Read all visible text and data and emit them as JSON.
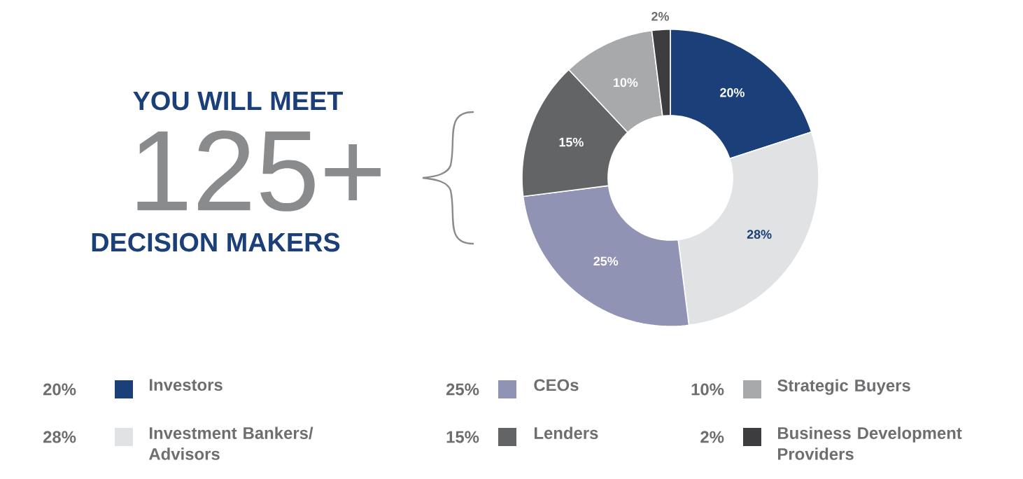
{
  "chart_data": {
    "type": "donut",
    "title": "YOU WILL MEET",
    "subtitle": "125+",
    "annotations": [
      "DECISION MAKERS"
    ],
    "categories": [
      "Investors",
      "Investment Bankers/ Advisors",
      "CEOs",
      "Lenders",
      "Strategic Buyers",
      "Business Development Providers"
    ],
    "values": [
      20,
      28,
      25,
      15,
      10,
      2
    ],
    "colors": [
      "#1b3f78",
      "#e1e2e4",
      "#9193b5",
      "#636466",
      "#a8a9ab",
      "#3d3d3f"
    ],
    "value_labels": [
      "20%",
      "28%",
      "25%",
      "15%",
      "10%",
      "2%"
    ],
    "data_labels": true,
    "legend": "bottom"
  }
}
